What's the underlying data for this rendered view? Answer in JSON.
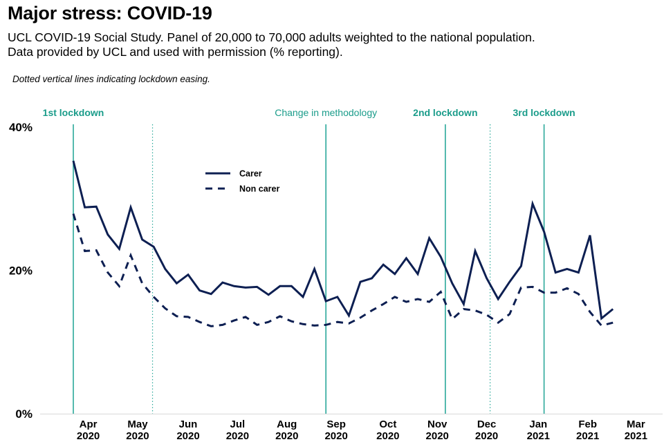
{
  "header": {
    "title": "Major stress: COVID-19",
    "subtitle_line1": "UCL COVID-19 Social Study. Panel of 20,000 to 70,000 adults weighted to the national population.",
    "subtitle_line2": "Data provided by UCL and used with permission (% reporting).",
    "note": "Dotted vertical lines indicating lockdown easing."
  },
  "colors": {
    "series": "#0d1f52",
    "event_line": "#2aa89a",
    "event_label": "#1a9c8a",
    "axis": "#d9d9d9"
  },
  "chart_data": {
    "type": "line",
    "title": "Major stress: COVID-19",
    "xlabel": "",
    "ylabel": "% reporting",
    "ylim": [
      0,
      40
    ],
    "yticks": [
      {
        "value": 0,
        "label": "0%"
      },
      {
        "value": 20,
        "label": "20%"
      },
      {
        "value": 40,
        "label": "40%"
      }
    ],
    "xticks": [
      {
        "week": 1.3,
        "month": "Apr",
        "year": "2020"
      },
      {
        "week": 5.6,
        "month": "May",
        "year": "2020"
      },
      {
        "week": 10.0,
        "month": "Jun",
        "year": "2020"
      },
      {
        "week": 14.3,
        "month": "Jul",
        "year": "2020"
      },
      {
        "week": 18.6,
        "month": "Aug",
        "year": "2020"
      },
      {
        "week": 22.9,
        "month": "Sep",
        "year": "2020"
      },
      {
        "week": 27.4,
        "month": "Oct",
        "year": "2020"
      },
      {
        "week": 31.7,
        "month": "Nov",
        "year": "2020"
      },
      {
        "week": 36.0,
        "month": "Dec",
        "year": "2020"
      },
      {
        "week": 40.5,
        "month": "Jan",
        "year": "2021"
      },
      {
        "week": 44.8,
        "month": "Feb",
        "year": "2021"
      },
      {
        "week": 49.0,
        "month": "Mar",
        "year": "2021"
      }
    ],
    "xlim": [
      -1.2,
      51.5
    ],
    "grid": false,
    "legend_position": "top-left",
    "series": [
      {
        "name": "Carer",
        "style": "solid",
        "values": [
          35.3,
          28.8,
          28.9,
          25.0,
          23.0,
          28.8,
          24.3,
          23.3,
          20.2,
          18.2,
          19.4,
          17.2,
          16.7,
          18.3,
          17.8,
          17.6,
          17.7,
          16.6,
          17.8,
          17.8,
          16.3,
          20.2,
          15.7,
          16.3,
          13.7,
          18.4,
          18.9,
          20.8,
          19.5,
          21.7,
          19.5,
          24.5,
          21.9,
          18.2,
          15.3,
          22.7,
          18.9,
          16.0,
          18.4,
          20.6,
          29.3,
          25.4,
          19.7,
          20.2,
          19.7,
          24.9,
          13.3,
          14.6
        ]
      },
      {
        "name": "Non carer",
        "style": "dashed",
        "values": [
          27.9,
          22.7,
          22.8,
          19.7,
          17.8,
          22.1,
          18.2,
          16.3,
          14.7,
          13.6,
          13.5,
          12.8,
          12.2,
          12.4,
          13.0,
          13.5,
          12.4,
          12.8,
          13.6,
          12.9,
          12.5,
          12.3,
          12.4,
          12.8,
          12.6,
          13.4,
          14.4,
          15.3,
          16.3,
          15.6,
          16.0,
          15.6,
          17.0,
          13.2,
          14.6,
          14.4,
          13.8,
          12.7,
          13.9,
          17.6,
          17.7,
          16.9,
          16.9,
          17.5,
          16.7,
          14.2,
          12.3,
          12.7
        ]
      }
    ],
    "events": [
      {
        "week": 0,
        "label": "1st lockdown",
        "style": "solid",
        "bold": true
      },
      {
        "week": 6.9,
        "label": "",
        "style": "dotted",
        "bold": false
      },
      {
        "week": 22.0,
        "label": "Change in methodology",
        "style": "solid",
        "bold": false
      },
      {
        "week": 32.4,
        "label": "2nd lockdown",
        "style": "solid",
        "bold": true
      },
      {
        "week": 36.3,
        "label": "",
        "style": "dotted",
        "bold": false
      },
      {
        "week": 41.0,
        "label": "3rd lockdown",
        "style": "solid",
        "bold": true
      }
    ],
    "annotations": [
      "Dotted vertical lines indicating lockdown easing."
    ]
  }
}
